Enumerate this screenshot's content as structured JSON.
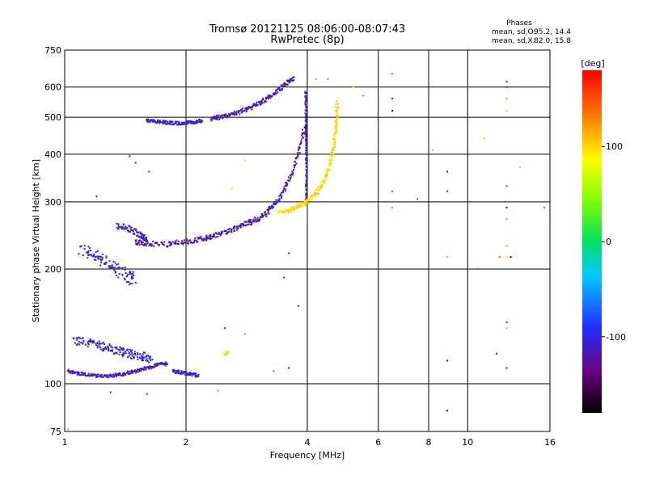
{
  "chart_data": {
    "type": "scatter",
    "title": "Tromsø 20121125 08:06:00-08:07:43",
    "subtitle": "RwPretec (8p)",
    "xlabel": "Frequency [MHz]",
    "ylabel": "Stationary phase Virtual Height [km]",
    "x_scale": "log",
    "y_scale": "log",
    "xlim": [
      1,
      16
    ],
    "ylim": [
      75,
      750
    ],
    "x_ticks": [
      1,
      2,
      4,
      6,
      8,
      10,
      16
    ],
    "x_tick_labels": [
      "1",
      "2",
      "4",
      "6",
      "8",
      "10",
      "16"
    ],
    "y_ticks": [
      75,
      100,
      200,
      300,
      400,
      500,
      600,
      750
    ],
    "y_tick_labels": [
      "75",
      "100",
      "200",
      "300",
      "400",
      "500",
      "600",
      "750"
    ],
    "grid": true,
    "stats": {
      "header": "Phases",
      "line_o_label": "mean, sd,O:",
      "line_o_values": "-95.2, 14.4",
      "line_x_label": "mean, sd,X:",
      "line_x_values": "82.0, 15.8"
    },
    "colorbar": {
      "label": "[deg]",
      "min": -180,
      "max": 180,
      "ticks": [
        100,
        0,
        -100
      ],
      "tick_labels": [
        "100",
        "0",
        "-100"
      ],
      "colormap": "rainbow: black-purple-blue-cyan-green-yellow-orange-red"
    },
    "traces": [
      {
        "x": [
          1.02,
          1.1,
          1.2,
          1.3,
          1.4,
          1.5,
          1.6,
          1.7,
          1.8
        ],
        "y": [
          108,
          106,
          105,
          105,
          106,
          108,
          110,
          112,
          113
        ],
        "phase": -110,
        "spread": 0.02
      },
      {
        "x": [
          1.6,
          1.7,
          1.8,
          1.9,
          2.0,
          2.1,
          2.2
        ],
        "y": [
          490,
          487,
          484,
          482,
          483,
          486,
          490
        ],
        "phase": -105,
        "spread": 0.02
      },
      {
        "x": [
          2.3,
          2.5,
          2.7,
          2.9,
          3.1,
          3.3,
          3.5,
          3.7
        ],
        "y": [
          495,
          503,
          515,
          530,
          550,
          575,
          605,
          635
        ],
        "phase": -115,
        "spread": 0.025
      },
      {
        "x": [
          1.5,
          1.6,
          1.8,
          2.0,
          2.2,
          2.4,
          2.6,
          2.8,
          3.0,
          3.2
        ],
        "y": [
          235,
          233,
          232,
          236,
          240,
          246,
          253,
          262,
          270,
          280
        ],
        "phase": -115,
        "spread": 0.03
      },
      {
        "x": [
          3.2,
          3.4,
          3.6,
          3.8,
          3.95
        ],
        "y": [
          285,
          305,
          340,
          400,
          480
        ],
        "phase": -112,
        "spread": 0.025
      },
      {
        "x": [
          3.97,
          3.98,
          3.98,
          3.97,
          3.96
        ],
        "y": [
          300,
          360,
          430,
          500,
          590
        ],
        "phase": -110,
        "spread": 0.012
      },
      {
        "x": [
          3.4,
          3.6,
          3.8,
          4.0,
          4.2,
          4.4,
          4.55,
          4.65,
          4.72,
          4.75
        ],
        "y": [
          280,
          285,
          292,
          300,
          315,
          340,
          375,
          420,
          480,
          550
        ],
        "phase": 100,
        "spread": 0.025
      },
      {
        "x": [
          1.05,
          1.15,
          1.25,
          1.35,
          1.45,
          1.55,
          1.65
        ],
        "y": [
          130,
          128,
          125,
          122,
          120,
          118,
          116
        ],
        "phase": -100,
        "spread": 0.05
      },
      {
        "x": [
          1.1,
          1.2,
          1.3,
          1.4,
          1.5
        ],
        "y": [
          225,
          215,
          205,
          195,
          185
        ],
        "phase": -100,
        "spread": 0.07
      },
      {
        "x": [
          1.35,
          1.45,
          1.55,
          1.6
        ],
        "y": [
          260,
          255,
          245,
          240
        ],
        "phase": -105,
        "spread": 0.04
      },
      {
        "x": [
          1.85,
          1.95,
          2.05,
          2.15
        ],
        "y": [
          108,
          107,
          106,
          105
        ],
        "phase": -100,
        "spread": 0.02
      },
      {
        "x": [
          2.5,
          2.52,
          2.55
        ],
        "y": [
          119,
          120,
          121
        ],
        "phase": 60,
        "spread": 0.01
      }
    ],
    "scatter": [
      {
        "x": 6.5,
        "y": 650,
        "phase": -10
      },
      {
        "x": 6.5,
        "y": 560,
        "phase": -140
      },
      {
        "x": 6.5,
        "y": 520,
        "phase": -170
      },
      {
        "x": 6.5,
        "y": 320,
        "phase": -60
      },
      {
        "x": 6.5,
        "y": 290,
        "phase": -40
      },
      {
        "x": 7.5,
        "y": 305,
        "phase": -60
      },
      {
        "x": 8.2,
        "y": 410,
        "phase": 120
      },
      {
        "x": 8.9,
        "y": 360,
        "phase": -130
      },
      {
        "x": 8.9,
        "y": 320,
        "phase": -110
      },
      {
        "x": 8.9,
        "y": 215,
        "phase": 30
      },
      {
        "x": 8.9,
        "y": 115,
        "phase": -150
      },
      {
        "x": 8.9,
        "y": 85,
        "phase": -160
      },
      {
        "x": 10.6,
        "y": 200,
        "phase": 160
      },
      {
        "x": 11.0,
        "y": 440,
        "phase": 110
      },
      {
        "x": 12.5,
        "y": 620,
        "phase": -90
      },
      {
        "x": 12.5,
        "y": 600,
        "phase": -130
      },
      {
        "x": 12.5,
        "y": 560,
        "phase": 20
      },
      {
        "x": 12.5,
        "y": 520,
        "phase": 40
      },
      {
        "x": 12.5,
        "y": 330,
        "phase": 170
      },
      {
        "x": 12.5,
        "y": 290,
        "phase": -150
      },
      {
        "x": 12.5,
        "y": 270,
        "phase": 130
      },
      {
        "x": 12.5,
        "y": 230,
        "phase": 120
      },
      {
        "x": 12.5,
        "y": 215,
        "phase": 90
      },
      {
        "x": 12.5,
        "y": 200,
        "phase": -60
      },
      {
        "x": 12.5,
        "y": 145,
        "phase": -90
      },
      {
        "x": 12.5,
        "y": 140,
        "phase": 110
      },
      {
        "x": 12.5,
        "y": 110,
        "phase": -110
      },
      {
        "x": 12.8,
        "y": 215,
        "phase": -160
      },
      {
        "x": 13.5,
        "y": 370,
        "phase": 110
      },
      {
        "x": 15.5,
        "y": 290,
        "phase": 140
      },
      {
        "x": 12.0,
        "y": 215,
        "phase": 150
      },
      {
        "x": 11.8,
        "y": 120,
        "phase": -100
      },
      {
        "x": 5.5,
        "y": 570,
        "phase": -40
      },
      {
        "x": 5.2,
        "y": 600,
        "phase": 80
      },
      {
        "x": 3.6,
        "y": 220,
        "phase": -130
      },
      {
        "x": 3.5,
        "y": 190,
        "phase": -100
      },
      {
        "x": 3.8,
        "y": 160,
        "phase": -120
      },
      {
        "x": 3.3,
        "y": 108,
        "phase": 150
      },
      {
        "x": 3.6,
        "y": 110,
        "phase": -140
      },
      {
        "x": 2.8,
        "y": 135,
        "phase": 130
      },
      {
        "x": 2.5,
        "y": 140,
        "phase": -110
      },
      {
        "x": 1.3,
        "y": 95,
        "phase": -110
      },
      {
        "x": 1.6,
        "y": 94,
        "phase": -100
      },
      {
        "x": 2.4,
        "y": 96,
        "phase": -40
      },
      {
        "x": 1.02,
        "y": 76,
        "phase": 120
      },
      {
        "x": 1.45,
        "y": 395,
        "phase": -110
      },
      {
        "x": 1.5,
        "y": 380,
        "phase": -110
      },
      {
        "x": 1.62,
        "y": 360,
        "phase": -100
      },
      {
        "x": 1.2,
        "y": 310,
        "phase": -100
      },
      {
        "x": 2.8,
        "y": 385,
        "phase": 100
      },
      {
        "x": 2.6,
        "y": 325,
        "phase": 100
      },
      {
        "x": 4.2,
        "y": 630,
        "phase": 120
      },
      {
        "x": 4.5,
        "y": 630,
        "phase": 140
      }
    ]
  }
}
